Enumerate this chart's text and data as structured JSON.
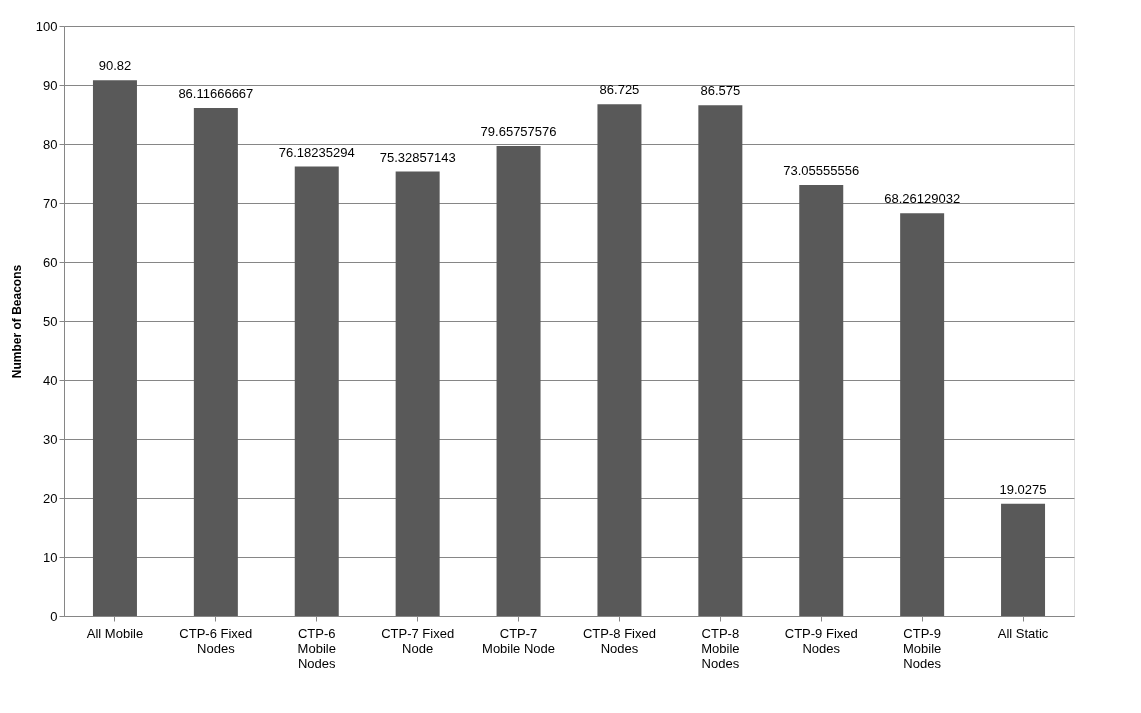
{
  "chart_data": {
    "type": "bar",
    "ylabel": "Number of Beacons",
    "categories": [
      "All Mobile",
      "CTP-6 Fixed Nodes",
      "CTP-6 Mobile Nodes",
      "CTP-7 Fixed Node",
      "CTP-7 Mobile Node",
      "CTP-8 Fixed Nodes",
      "CTP-8 Mobile Nodes",
      "CTP-9 Fixed Nodes",
      "CTP-9 Mobile Nodes",
      "All Static"
    ],
    "values": [
      90.82,
      86.11666667,
      76.18235294,
      75.32857143,
      79.65757576,
      86.725,
      86.575,
      73.05555556,
      68.26129032,
      19.0275
    ],
    "color": "#595959",
    "ylim": [
      0,
      100
    ],
    "yticks": [
      0,
      10,
      20,
      30,
      40,
      50,
      60,
      70,
      80,
      90,
      100
    ],
    "grid": "y",
    "data_labels": true
  }
}
